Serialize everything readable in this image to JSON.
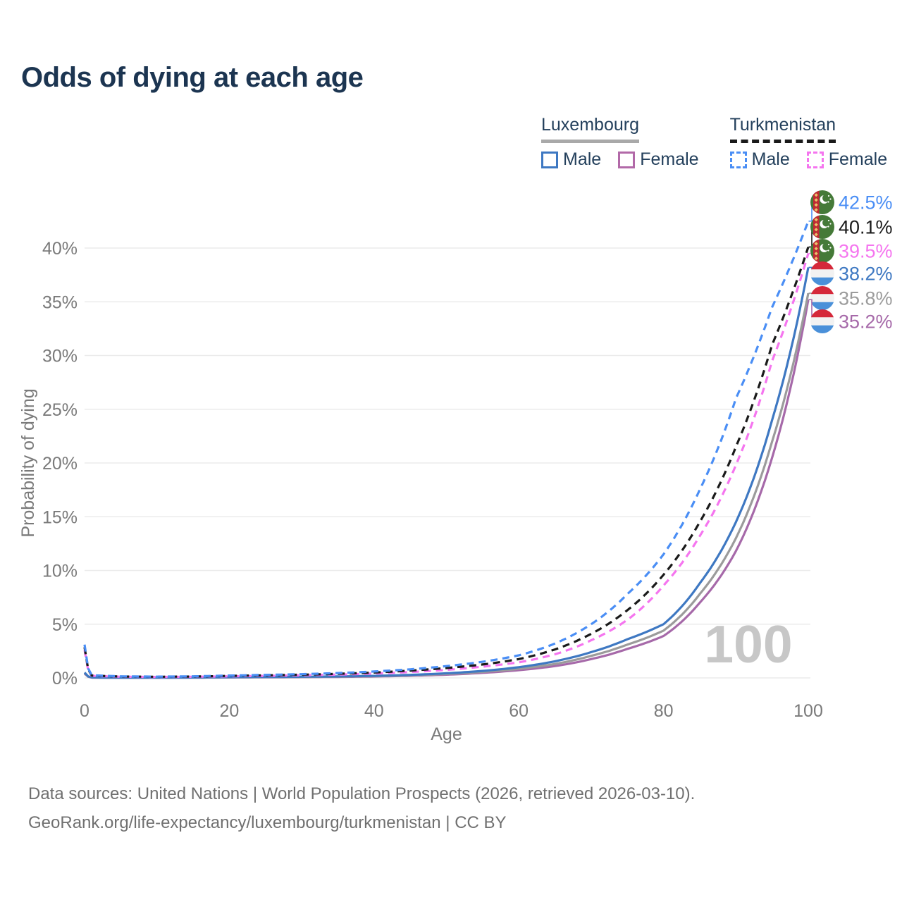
{
  "title": "Odds of dying at each age",
  "watermark": "100",
  "legend": {
    "groups": [
      {
        "country": "Luxembourg",
        "line_style": "solid",
        "underline_color": "#a9a9a9",
        "items": [
          {
            "label": "Male",
            "color": "#3e78c2"
          },
          {
            "label": "Female",
            "color": "#b269a8"
          }
        ]
      },
      {
        "country": "Turkmenistan",
        "line_style": "dashed",
        "underline_color": "#1a1a1a",
        "items": [
          {
            "label": "Male",
            "color": "#4a8ef5"
          },
          {
            "label": "Female",
            "color": "#f575ef"
          }
        ]
      }
    ]
  },
  "chart_data": {
    "type": "line",
    "title": "Odds of dying at each age",
    "xlabel": "Age",
    "ylabel": "Probability of dying",
    "x_ticks": [
      0,
      20,
      40,
      60,
      80,
      100
    ],
    "y_ticks_percent": [
      0,
      5,
      10,
      15,
      20,
      25,
      30,
      35,
      40
    ],
    "xlim": [
      0,
      100
    ],
    "ylim_percent": [
      0,
      44
    ],
    "grid": "horizontal",
    "legend_position": "top-right",
    "watermark": "100",
    "ages": [
      0,
      1,
      5,
      10,
      15,
      20,
      25,
      30,
      35,
      40,
      45,
      50,
      55,
      60,
      65,
      70,
      75,
      80,
      85,
      90,
      95,
      100
    ],
    "series": [
      {
        "id": "tm_male",
        "name": "Turkmenistan Male",
        "country": "Turkmenistan",
        "sex": "Male",
        "color": "#4a8ef5",
        "dashed": true,
        "flag": "turkmenistan",
        "end_label": "42.5%",
        "label_color": "#4a8ef5",
        "values_percent": [
          3.1,
          0.25,
          0.15,
          0.12,
          0.15,
          0.22,
          0.28,
          0.35,
          0.45,
          0.6,
          0.8,
          1.1,
          1.5,
          2.1,
          3.2,
          5.0,
          7.8,
          11.5,
          17.5,
          26.0,
          34.5,
          42.5
        ]
      },
      {
        "id": "tm_both",
        "name": "Turkmenistan Both sexes",
        "country": "Turkmenistan",
        "sex": "Both",
        "color": "#1a1a1a",
        "dashed": true,
        "flag": "turkmenistan",
        "end_label": "40.1%",
        "label_color": "#1a1a1a",
        "values_percent": [
          2.85,
          0.22,
          0.13,
          0.11,
          0.13,
          0.19,
          0.24,
          0.3,
          0.38,
          0.5,
          0.68,
          0.92,
          1.25,
          1.75,
          2.65,
          4.1,
          6.3,
          9.6,
          14.5,
          21.5,
          31.0,
          40.1
        ]
      },
      {
        "id": "tm_female",
        "name": "Turkmenistan Female",
        "country": "Turkmenistan",
        "sex": "Female",
        "color": "#f575ef",
        "dashed": true,
        "flag": "turkmenistan",
        "end_label": "39.5%",
        "label_color": "#f575ef",
        "values_percent": [
          2.6,
          0.2,
          0.11,
          0.09,
          0.11,
          0.15,
          0.19,
          0.24,
          0.31,
          0.41,
          0.55,
          0.75,
          1.05,
          1.45,
          2.2,
          3.5,
          5.4,
          8.6,
          13.2,
          19.8,
          29.5,
          39.5
        ]
      },
      {
        "id": "lu_male",
        "name": "Luxembourg Male",
        "country": "Luxembourg",
        "sex": "Male",
        "color": "#3e78c2",
        "dashed": false,
        "flag": "luxembourg",
        "end_label": "38.2%",
        "label_color": "#3e78c2",
        "values_percent": [
          0.5,
          0.04,
          0.02,
          0.02,
          0.04,
          0.07,
          0.09,
          0.11,
          0.14,
          0.19,
          0.28,
          0.43,
          0.65,
          1.0,
          1.55,
          2.4,
          3.6,
          5.0,
          8.8,
          14.5,
          24.0,
          38.2
        ]
      },
      {
        "id": "lu_both",
        "name": "Luxembourg Both sexes",
        "country": "Luxembourg",
        "sex": "Both",
        "color": "#9b9b9b",
        "dashed": false,
        "flag": "luxembourg",
        "end_label": "35.8%",
        "label_color": "#9b9b9b",
        "values_percent": [
          0.45,
          0.035,
          0.02,
          0.02,
          0.03,
          0.055,
          0.07,
          0.09,
          0.12,
          0.16,
          0.24,
          0.37,
          0.56,
          0.85,
          1.3,
          2.05,
          3.1,
          4.4,
          7.8,
          13.0,
          22.0,
          35.8
        ]
      },
      {
        "id": "lu_female",
        "name": "Luxembourg Female",
        "country": "Luxembourg",
        "sex": "Female",
        "color": "#a669a9",
        "dashed": false,
        "flag": "luxembourg",
        "end_label": "35.2%",
        "label_color": "#a669a9",
        "values_percent": [
          0.4,
          0.03,
          0.015,
          0.015,
          0.025,
          0.04,
          0.055,
          0.07,
          0.095,
          0.13,
          0.2,
          0.3,
          0.47,
          0.72,
          1.1,
          1.75,
          2.7,
          3.9,
          7.0,
          11.8,
          20.5,
          35.2
        ]
      }
    ]
  },
  "footer": {
    "line1": "Data sources: United Nations | World Population Prospects (2026, retrieved 2026-03-10).",
    "line2": "GeoRank.org/life-expectancy/luxembourg/turkmenistan | CC BY"
  }
}
